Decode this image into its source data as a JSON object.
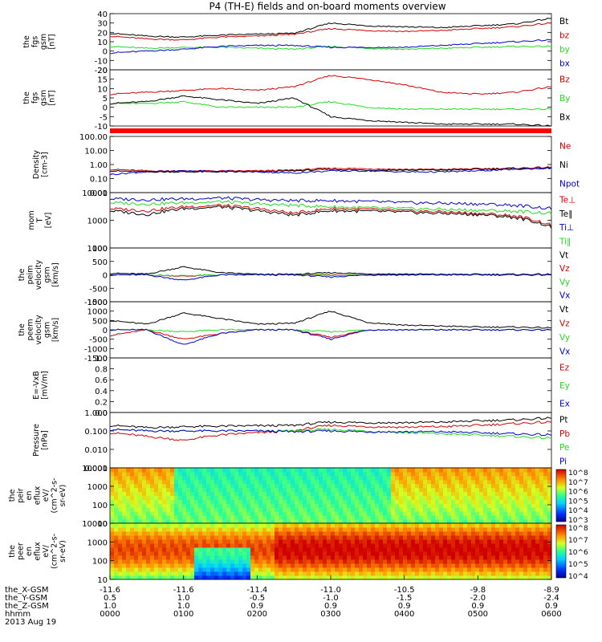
{
  "title": "P4 (TH-E) fields and on-board moments overview",
  "colors": {
    "black": "#000000",
    "red": "#d40000",
    "green": "#22dd22",
    "blue": "#0000cc",
    "bar": "#ff0000"
  },
  "x_axis": {
    "rows": [
      {
        "label": "the_X-GSM",
        "values": [
          "-11.6",
          "-11.6",
          "-11.4",
          "-11.0",
          "-10.5",
          "-9.8",
          "-8.9"
        ]
      },
      {
        "label": "the_Y-GSM",
        "values": [
          "0.5",
          "1.0",
          "-0.5",
          "-1.0",
          "-1.5",
          "-2.0",
          "-2.4"
        ]
      },
      {
        "label": "the_Z-GSM",
        "values": [
          "1.0",
          "1.0",
          "0.9",
          "0.9",
          "0.9",
          "0.9",
          "0.9"
        ]
      },
      {
        "label": "hhmm",
        "values": [
          "0000",
          "0100",
          "0200",
          "0300",
          "0400",
          "0500",
          "0600"
        ]
      }
    ],
    "date": "2013 Aug 19"
  },
  "panels": [
    {
      "key": "p1",
      "ylabel": [
        "the",
        "fgs",
        "gsm",
        "[nT]"
      ],
      "ticks": [
        "40",
        "30",
        "20",
        "10",
        "0",
        "-10",
        "-20"
      ],
      "legend": [
        {
          "t": "Bt",
          "c": "black"
        },
        {
          "t": "bz",
          "c": "red"
        },
        {
          "t": "by",
          "c": "green"
        },
        {
          "t": "bx",
          "c": "blue"
        }
      ]
    },
    {
      "key": "p2",
      "ylabel": [
        "the",
        "fgs",
        "gsm",
        "[nT]"
      ],
      "ticks": [
        "20",
        "15",
        "10",
        "5",
        "0",
        "-5",
        "-10"
      ],
      "legend": [
        {
          "t": "Bz",
          "c": "red"
        },
        {
          "t": "By",
          "c": "green"
        },
        {
          "t": "Bx",
          "c": "black"
        }
      ]
    },
    {
      "key": "p3",
      "ylabel": [
        "Density",
        "[cm-3]"
      ],
      "ticks": [
        "100.00",
        "10.00",
        "1.00",
        "0.10",
        "0.01"
      ],
      "legend": [
        {
          "t": "Ne",
          "c": "red"
        },
        {
          "t": "Ni",
          "c": "black"
        },
        {
          "t": "Npot",
          "c": "blue"
        }
      ]
    },
    {
      "key": "p4",
      "ylabel": [
        "mom",
        "T",
        "[eV]"
      ],
      "ticks": [
        "10000",
        "1000",
        "100"
      ],
      "legend": [
        {
          "t": "Te⊥",
          "c": "red"
        },
        {
          "t": "Te∥",
          "c": "black"
        },
        {
          "t": "Ti⊥",
          "c": "blue"
        },
        {
          "t": "Ti∥",
          "c": "green"
        }
      ]
    },
    {
      "key": "p5",
      "ylabel": [
        "the",
        "peim",
        "velocity",
        "gsm",
        "[km/s]"
      ],
      "ticks": [
        "1000",
        "500",
        "0",
        "-500",
        "-1000"
      ],
      "legend": [
        {
          "t": "Vt",
          "c": "black"
        },
        {
          "t": "Vz",
          "c": "red"
        },
        {
          "t": "Vy",
          "c": "green"
        },
        {
          "t": "Vx",
          "c": "blue"
        }
      ]
    },
    {
      "key": "p6",
      "ylabel": [
        "the",
        "peem",
        "velocity",
        "gsm",
        "[km/s]"
      ],
      "ticks": [
        "1500",
        "1000",
        "500",
        "0",
        "-500",
        "-1000",
        "-1500"
      ],
      "legend": [
        {
          "t": "Vt",
          "c": "black"
        },
        {
          "t": "Vz",
          "c": "red"
        },
        {
          "t": "Vy",
          "c": "green"
        },
        {
          "t": "Vx",
          "c": "blue"
        }
      ]
    },
    {
      "key": "p7",
      "ylabel": [
        "E=-VxB",
        "[mV/m]"
      ],
      "ticks": [
        "1.0",
        "0.8",
        "0.6",
        "0.4",
        "0.2",
        "0.0"
      ],
      "legend": [
        {
          "t": "Ez",
          "c": "red"
        },
        {
          "t": "Ey",
          "c": "green"
        },
        {
          "t": "Ex",
          "c": "blue"
        }
      ]
    },
    {
      "key": "p8",
      "ylabel": [
        "Pressure",
        "[nPa]"
      ],
      "ticks": [
        "1.000",
        "0.100",
        "0.010",
        "0.001"
      ],
      "legend": [
        {
          "t": "Pt",
          "c": "black"
        },
        {
          "t": "Pb",
          "c": "red"
        },
        {
          "t": "Pe",
          "c": "green"
        },
        {
          "t": "Pi",
          "c": "blue"
        }
      ]
    },
    {
      "key": "p9",
      "ylabel": [
        "the",
        "peir",
        "en",
        "eflux",
        "eV/",
        "(cm^2-s-",
        "sr-eV)"
      ],
      "ticks": [
        "10000",
        "1000",
        "100",
        "10"
      ],
      "colorbar": [
        "10^8",
        "10^7",
        "10^6",
        "10^5",
        "10^4",
        "10^3"
      ]
    },
    {
      "key": "p10",
      "ylabel": [
        "the",
        "peer",
        "en",
        "eflux",
        "eV/",
        "(cm^2-s-",
        "sr-eV)"
      ],
      "ticks": [
        "10000",
        "1000",
        "100",
        "10"
      ],
      "colorbar": [
        "10^8",
        "10^7",
        "10^6",
        "10^5",
        "10^4"
      ]
    }
  ],
  "chart_data": [
    {
      "type": "line",
      "title": "P4 (TH-E) fields and on-board moments overview",
      "ylabel": "the fgs gsm [nT]",
      "ylim": [
        -20,
        40
      ],
      "x": [
        "0000",
        "0030",
        "0100",
        "0130",
        "0200",
        "0230",
        "0300",
        "0330",
        "0400",
        "0430",
        "0500",
        "0530",
        "0600"
      ],
      "series": [
        {
          "name": "Bt",
          "color": "black",
          "values": [
            19,
            16,
            15,
            17,
            18,
            19,
            30,
            27,
            26,
            25,
            27,
            29,
            35
          ]
        },
        {
          "name": "bz",
          "color": "red",
          "values": [
            16,
            13,
            12,
            15,
            16,
            18,
            24,
            22,
            21,
            22,
            24,
            26,
            30
          ]
        },
        {
          "name": "by",
          "color": "green",
          "values": [
            5,
            3,
            4,
            4,
            3,
            2,
            5,
            3,
            2,
            3,
            4,
            5,
            5
          ]
        },
        {
          "name": "bx",
          "color": "blue",
          "values": [
            -2,
            0,
            2,
            5,
            6,
            6,
            4,
            4,
            4,
            6,
            8,
            10,
            12
          ]
        }
      ]
    },
    {
      "type": "line",
      "ylabel": "the fgs gsm [nT]",
      "ylim": [
        -10,
        20
      ],
      "x": [
        "0000",
        "0030",
        "0100",
        "0130",
        "0200",
        "0230",
        "0300",
        "0330",
        "0400",
        "0430",
        "0500",
        "0530",
        "0600"
      ],
      "series": [
        {
          "name": "Bz",
          "color": "red",
          "values": [
            7,
            8,
            9,
            10,
            9,
            11,
            17,
            15,
            12,
            8,
            7,
            8,
            11
          ]
        },
        {
          "name": "By",
          "color": "green",
          "values": [
            2,
            2,
            3,
            0,
            0,
            0,
            3,
            0,
            -1,
            -1,
            -1,
            -1,
            -1
          ]
        },
        {
          "name": "Bx",
          "color": "black",
          "values": [
            2,
            3,
            6,
            4,
            2,
            5,
            -5,
            -7,
            -8,
            -9,
            -9,
            -9,
            -10
          ]
        }
      ]
    },
    {
      "type": "line",
      "ylabel": "Density [cm-3]",
      "scale": "log",
      "ylim": [
        0.005,
        200
      ],
      "x": [
        "0000",
        "0030",
        "0100",
        "0130",
        "0200",
        "0230",
        "0300",
        "0330",
        "0400",
        "0430",
        "0500",
        "0530",
        "0600"
      ],
      "series": [
        {
          "name": "Ne",
          "color": "red",
          "values": [
            0.4,
            0.3,
            0.3,
            0.3,
            0.3,
            0.35,
            0.5,
            0.45,
            0.4,
            0.4,
            0.45,
            0.5,
            0.6
          ]
        },
        {
          "name": "Ni",
          "color": "black",
          "values": [
            0.3,
            0.25,
            0.25,
            0.25,
            0.25,
            0.3,
            0.4,
            0.35,
            0.35,
            0.35,
            0.4,
            0.45,
            0.5
          ]
        },
        {
          "name": "Npot",
          "color": "blue",
          "values": [
            0.15,
            0.25,
            0.3,
            0.28,
            0.25,
            0.2,
            0.3,
            0.3,
            0.25,
            0.25,
            0.3,
            0.4,
            0.5
          ]
        }
      ]
    },
    {
      "type": "line",
      "ylabel": "mom T [eV]",
      "scale": "log",
      "ylim": [
        100,
        12000
      ],
      "x": [
        "0000",
        "0030",
        "0100",
        "0130",
        "0200",
        "0230",
        "0300",
        "0330",
        "0400",
        "0430",
        "0500",
        "0530",
        "0600"
      ],
      "series": [
        {
          "name": "Te⊥",
          "color": "red",
          "values": [
            3000,
            2500,
            3500,
            4000,
            3000,
            2000,
            3000,
            2800,
            2500,
            2300,
            2000,
            1600,
            700
          ]
        },
        {
          "name": "Te∥",
          "color": "black",
          "values": [
            2500,
            1800,
            3000,
            3500,
            2500,
            1700,
            2500,
            2400,
            2200,
            2000,
            1800,
            1400,
            600
          ]
        },
        {
          "name": "Ti⊥",
          "color": "blue",
          "values": [
            7000,
            6500,
            7000,
            7500,
            6500,
            6000,
            6000,
            5500,
            5000,
            4800,
            4500,
            4000,
            3000
          ]
        },
        {
          "name": "Ti∥",
          "color": "green",
          "values": [
            5000,
            4500,
            5000,
            5500,
            4500,
            4000,
            3500,
            3200,
            3000,
            2800,
            2600,
            2400,
            2000
          ]
        }
      ]
    },
    {
      "type": "line",
      "ylabel": "the peim velocity gsm [km/s]",
      "ylim": [
        -1000,
        1000
      ],
      "x": [
        "0000",
        "0030",
        "0100",
        "0130",
        "0200",
        "0230",
        "0300",
        "0330",
        "0400",
        "0430",
        "0500",
        "0530",
        "0600"
      ],
      "series": [
        {
          "name": "Vt",
          "color": "black",
          "values": [
            60,
            30,
            300,
            80,
            20,
            20,
            80,
            40,
            30,
            20,
            20,
            20,
            20
          ]
        },
        {
          "name": "Vz",
          "color": "red",
          "values": [
            0,
            0,
            -50,
            0,
            0,
            0,
            0,
            0,
            0,
            0,
            0,
            0,
            0
          ]
        },
        {
          "name": "Vy",
          "color": "green",
          "values": [
            0,
            0,
            -30,
            0,
            0,
            0,
            -20,
            0,
            0,
            0,
            0,
            0,
            0
          ]
        },
        {
          "name": "Vx",
          "color": "blue",
          "values": [
            0,
            0,
            -200,
            0,
            0,
            0,
            -80,
            0,
            0,
            0,
            0,
            0,
            0
          ]
        }
      ]
    },
    {
      "type": "line",
      "ylabel": "the peem velocity gsm [km/s]",
      "ylim": [
        -1500,
        1500
      ],
      "x": [
        "0000",
        "0030",
        "0100",
        "0130",
        "0200",
        "0230",
        "0300",
        "0330",
        "0400",
        "0430",
        "0500",
        "0530",
        "0600"
      ],
      "series": [
        {
          "name": "Vt",
          "color": "black",
          "values": [
            500,
            300,
            900,
            600,
            300,
            350,
            1000,
            400,
            250,
            200,
            150,
            150,
            100
          ]
        },
        {
          "name": "Vz",
          "color": "red",
          "values": [
            -300,
            0,
            -500,
            -200,
            0,
            0,
            -400,
            0,
            0,
            0,
            0,
            0,
            0
          ]
        },
        {
          "name": "Vy",
          "color": "green",
          "values": [
            0,
            0,
            -100,
            0,
            0,
            0,
            -100,
            0,
            0,
            0,
            0,
            0,
            0
          ]
        },
        {
          "name": "Vx",
          "color": "blue",
          "values": [
            0,
            0,
            -800,
            -200,
            0,
            0,
            -500,
            0,
            0,
            0,
            0,
            0,
            0
          ]
        }
      ]
    },
    {
      "type": "line",
      "ylabel": "E=-VxB [mV/m]",
      "ylim": [
        0,
        1
      ],
      "series": []
    },
    {
      "type": "line",
      "ylabel": "Pressure [nPa]",
      "scale": "log",
      "ylim": [
        0.001,
        1
      ],
      "x": [
        "0000",
        "0030",
        "0100",
        "0130",
        "0200",
        "0230",
        "0300",
        "0330",
        "0400",
        "0430",
        "0500",
        "0530",
        "0600"
      ],
      "series": [
        {
          "name": "Pt",
          "color": "black",
          "values": [
            0.2,
            0.15,
            0.17,
            0.18,
            0.19,
            0.2,
            0.3,
            0.28,
            0.28,
            0.3,
            0.35,
            0.4,
            0.5
          ]
        },
        {
          "name": "Pb",
          "color": "red",
          "values": [
            0.08,
            0.05,
            0.03,
            0.06,
            0.08,
            0.1,
            0.2,
            0.17,
            0.16,
            0.17,
            0.2,
            0.25,
            0.3
          ]
        },
        {
          "name": "Pe",
          "color": "green",
          "values": [
            0.12,
            0.1,
            0.1,
            0.1,
            0.1,
            0.1,
            0.12,
            0.1,
            0.08,
            0.07,
            0.06,
            0.05,
            0.04
          ]
        },
        {
          "name": "Pi",
          "color": "blue",
          "values": [
            0.12,
            0.1,
            0.1,
            0.1,
            0.1,
            0.09,
            0.1,
            0.09,
            0.09,
            0.09,
            0.08,
            0.07,
            0.06
          ]
        }
      ]
    },
    {
      "type": "heatmap",
      "ylabel": "the peir en eflux eV/(cm^2-s-sr-eV)",
      "scale": "log",
      "ylim": [
        7,
        30000
      ],
      "colorbar": [
        "10^3",
        "10^4",
        "10^5",
        "10^6",
        "10^7",
        "10^8"
      ]
    },
    {
      "type": "heatmap",
      "ylabel": "the peer en eflux eV/(cm^2-s-sr-eV)",
      "scale": "log",
      "ylim": [
        7,
        30000
      ],
      "colorbar": [
        "10^4",
        "10^5",
        "10^6",
        "10^7",
        "10^8"
      ]
    }
  ]
}
